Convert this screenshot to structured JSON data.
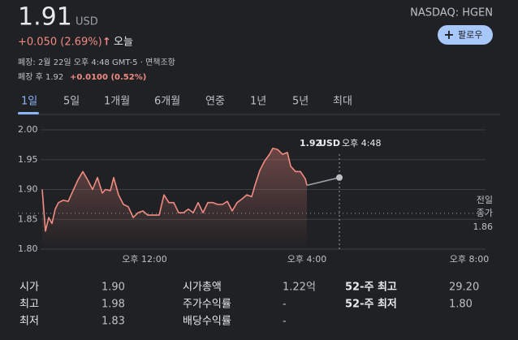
{
  "header": {
    "price": "1.91",
    "currency": "USD",
    "exchange": "NASDAQ: HGEN",
    "follow_button": "팔로우",
    "change": "+0.050 (2.69%)",
    "change_period": "오늘",
    "closed_note": "폐장: 2월 22일 오후 4:48 GMT-5 · 면책조항",
    "after_hours_label": "폐장 후 1.92",
    "after_hours_change": "+0.0100 (0.52%)"
  },
  "tabs": {
    "items": [
      "1일",
      "5일",
      "1개월",
      "6개월",
      "연중",
      "1년",
      "5년",
      "최대"
    ],
    "selected": 0
  },
  "chart_data": {
    "type": "line",
    "series": [
      {
        "color": "#f28b82",
        "x": [
          9.48,
          9.56,
          9.64,
          9.72,
          9.8,
          9.88,
          10.0,
          10.12,
          10.24,
          10.36,
          10.48,
          10.6,
          10.72,
          10.84,
          10.96,
          11.04,
          11.16,
          11.24,
          11.36,
          11.48,
          11.6,
          11.72,
          11.84,
          11.96,
          12.08,
          12.2,
          12.36,
          12.48,
          12.6,
          12.72,
          12.84,
          12.96,
          13.08,
          13.2,
          13.32,
          13.44,
          13.56,
          13.68,
          13.8,
          13.92,
          14.04,
          14.16,
          14.28,
          14.4,
          14.52,
          14.64,
          14.72,
          14.84,
          14.96,
          15.08,
          15.16,
          15.28,
          15.4,
          15.52,
          15.6,
          15.72,
          15.84,
          15.96,
          16.0
        ],
        "values": [
          1.9,
          1.83,
          1.853,
          1.843,
          1.867,
          1.878,
          1.882,
          1.88,
          1.898,
          1.916,
          1.93,
          1.916,
          1.9,
          1.92,
          1.894,
          1.9,
          1.898,
          1.92,
          1.891,
          1.875,
          1.871,
          1.853,
          1.861,
          1.864,
          1.857,
          1.857,
          1.857,
          1.891,
          1.878,
          1.878,
          1.861,
          1.861,
          1.867,
          1.861,
          1.878,
          1.861,
          1.878,
          1.878,
          1.875,
          1.875,
          1.88,
          1.864,
          1.878,
          1.884,
          1.891,
          1.888,
          1.907,
          1.932,
          1.948,
          1.959,
          1.969,
          1.967,
          1.959,
          1.962,
          1.939,
          1.93,
          1.93,
          1.918,
          1.907
        ]
      },
      {
        "color": "#9aa0a6",
        "x": [
          16.0,
          16.8
        ],
        "values": [
          1.907,
          1.92
        ]
      }
    ],
    "xlim": [
      9.44,
      20.4
    ],
    "xticks": [
      {
        "value": 12,
        "label": "오후 12:00"
      },
      {
        "value": 16,
        "label": "오후 4:00"
      },
      {
        "value": 20,
        "label": "오후 8:00"
      }
    ],
    "ylim": [
      1.8,
      2.0
    ],
    "yticks": [
      {
        "value": 2.0,
        "label": "2.00"
      },
      {
        "value": 1.95,
        "label": "1.95"
      },
      {
        "value": 1.9,
        "label": "1.90"
      },
      {
        "value": 1.85,
        "label": "1.85"
      },
      {
        "value": 1.8,
        "label": "1.80"
      }
    ],
    "grid": true,
    "reference_line": {
      "label_lines": [
        "전일",
        "종가"
      ],
      "value": 1.86
    },
    "tooltip": {
      "price": 1.92,
      "currency": "USD",
      "time": "오후 4:48",
      "x": 16.8
    }
  },
  "stats": [
    {
      "label": "시가",
      "value": "1.90"
    },
    {
      "label": "최고",
      "value": "1.98"
    },
    {
      "label": "최저",
      "value": "1.83"
    },
    {
      "label": "시가총액",
      "value": "1.22억"
    },
    {
      "label": "주가수익률",
      "value": "-"
    },
    {
      "label": "배당수익률",
      "value": "-"
    },
    {
      "label": "52-주 최고",
      "value": "29.20"
    },
    {
      "label": "52-주 최저",
      "value": "1.80"
    }
  ]
}
